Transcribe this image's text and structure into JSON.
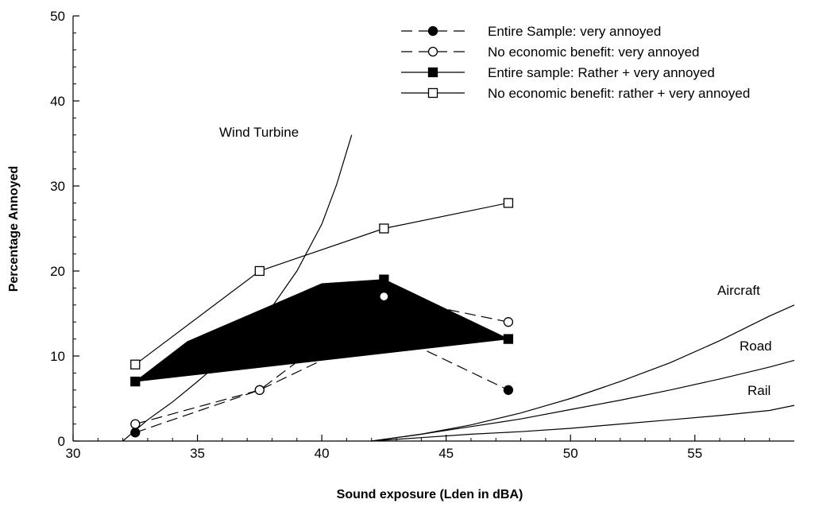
{
  "chart_data": {
    "type": "line",
    "title": "",
    "xlabel": "Sound exposure (Lden in dBA)",
    "ylabel": "Percentage  Annoyed",
    "xlim": [
      30,
      59
    ],
    "ylim": [
      0,
      50
    ],
    "xticks": [
      30,
      35,
      40,
      45,
      50,
      55
    ],
    "yticks": [
      0,
      10,
      20,
      30,
      40,
      50
    ],
    "grid": false,
    "legend_position": "top-right",
    "series": [
      {
        "name": "Entire Sample: very annoyed",
        "style": "dashed",
        "marker": "filled-circle",
        "x": [
          32.5,
          37.5,
          42.5,
          47.5
        ],
        "y": [
          1,
          6,
          13,
          6
        ]
      },
      {
        "name": "No economic benefit: very annoyed",
        "style": "dashed",
        "marker": "open-circle",
        "x": [
          32.5,
          37.5,
          42.5,
          47.5
        ],
        "y": [
          2,
          6,
          17,
          14
        ]
      },
      {
        "name": "Entire sample: Rather + very annoyed",
        "style": "solid",
        "marker": "filled-square",
        "x": [
          32.5,
          37.5,
          42.5,
          47.5
        ],
        "y": [
          7,
          10,
          19,
          12
        ]
      },
      {
        "name": "No economic benefit: rather + very annoyed",
        "style": "solid",
        "marker": "open-square",
        "x": [
          32.5,
          37.5,
          42.5,
          47.5
        ],
        "y": [
          9,
          20,
          25,
          28
        ]
      }
    ],
    "shaded_region": {
      "x": [
        32.5,
        34.6,
        40.0,
        42.5,
        47.5
      ],
      "y": [
        7,
        11.7,
        18.5,
        19,
        12
      ]
    },
    "curves": [
      {
        "name": "Wind Turbine",
        "x": [
          32.0,
          33.0,
          34.0,
          35.0,
          36.0,
          37.0,
          38.0,
          39.0,
          40.0,
          40.6,
          41.2
        ],
        "y": [
          0,
          2.5,
          4.6,
          7.0,
          9.5,
          12.4,
          15.8,
          20.0,
          25.5,
          30.2,
          36.0
        ]
      },
      {
        "name": "Aircraft",
        "x": [
          42.0,
          44.0,
          46.0,
          48.0,
          50.0,
          52.0,
          54.0,
          56.0,
          58.0,
          59.0
        ],
        "y": [
          0,
          0.8,
          1.9,
          3.3,
          5.0,
          7.0,
          9.2,
          11.8,
          14.7,
          16.0
        ]
      },
      {
        "name": "Road",
        "x": [
          42.0,
          44.0,
          46.0,
          48.0,
          50.0,
          52.0,
          54.0,
          56.0,
          58.0,
          59.0
        ],
        "y": [
          0,
          0.8,
          1.7,
          2.6,
          3.7,
          4.8,
          6.0,
          7.3,
          8.7,
          9.5
        ]
      },
      {
        "name": "Rail",
        "x": [
          42.0,
          44.0,
          46.0,
          48.0,
          50.0,
          52.0,
          54.0,
          56.0,
          58.0,
          59.0
        ],
        "y": [
          0,
          0.4,
          0.8,
          1.1,
          1.5,
          2.0,
          2.5,
          3.0,
          3.6,
          4.2
        ]
      }
    ],
    "curve_labels": {
      "wind": "Wind Turbine",
      "aircraft": "Aircraft",
      "road": "Road",
      "rail": "Rail"
    }
  }
}
